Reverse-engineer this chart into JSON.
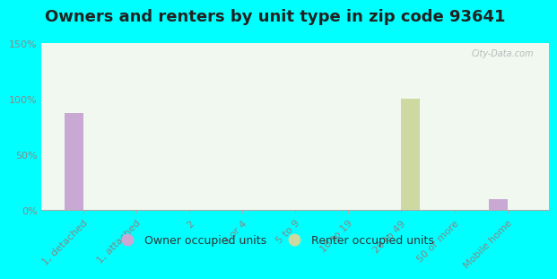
{
  "title": "Owners and renters by unit type in zip code 93641",
  "categories": [
    "1, detached",
    "1, attached",
    "2",
    "3 or 4",
    "5 to 9",
    "10 to 19",
    "20 to 49",
    "50 or more",
    "Mobile home"
  ],
  "owner_values": [
    87,
    0,
    0,
    0,
    0,
    0,
    0,
    0,
    10
  ],
  "renter_values": [
    0,
    0,
    0,
    0,
    0,
    0,
    100,
    0,
    0
  ],
  "owner_color": "#c9a8d4",
  "renter_color": "#cdd9a0",
  "background_color": "#00ffff",
  "plot_bg_top": "#f0f8f0",
  "plot_bg_bottom": "#d8efc0",
  "ylim": [
    0,
    150
  ],
  "yticks": [
    0,
    50,
    100,
    150
  ],
  "ytick_labels": [
    "0%",
    "50%",
    "100%",
    "150%"
  ],
  "bar_width": 0.35,
  "legend_owner": "Owner occupied units",
  "legend_renter": "Renter occupied units",
  "title_fontsize": 13,
  "tick_fontsize": 8,
  "legend_fontsize": 9,
  "tick_color": "#888888",
  "title_color": "#222222"
}
